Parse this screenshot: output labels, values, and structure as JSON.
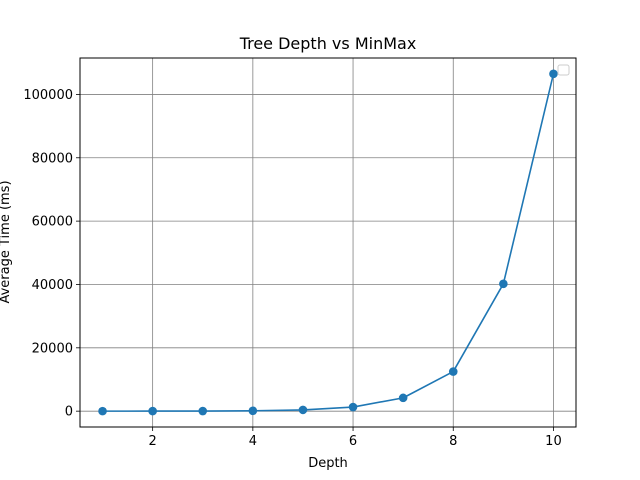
{
  "chart_data": {
    "type": "line",
    "title": "Tree Depth vs MinMax",
    "xlabel": "Depth",
    "ylabel": "Average Time (ms)",
    "x": [
      1,
      2,
      3,
      4,
      5,
      6,
      7,
      8,
      9,
      10
    ],
    "series": [
      {
        "values": [
          10,
          20,
          40,
          120,
          400,
          1300,
          4200,
          12500,
          40200,
          106500
        ],
        "color": "#1f77b4",
        "marker": "circle"
      }
    ],
    "xlim": [
      0.55,
      10.45
    ],
    "ylim": [
      -5000,
      111500
    ],
    "xticks": [
      2,
      4,
      6,
      8,
      10
    ],
    "yticks": [
      0,
      20000,
      40000,
      60000,
      80000,
      100000
    ],
    "xtick_labels": [
      "2",
      "4",
      "6",
      "8",
      "10"
    ],
    "ytick_labels": [
      "0",
      "20000",
      "40000",
      "60000",
      "80000",
      "100000"
    ],
    "grid": true,
    "grid_color": "#808080",
    "legend": {
      "placement": "top-right",
      "entries": []
    }
  }
}
